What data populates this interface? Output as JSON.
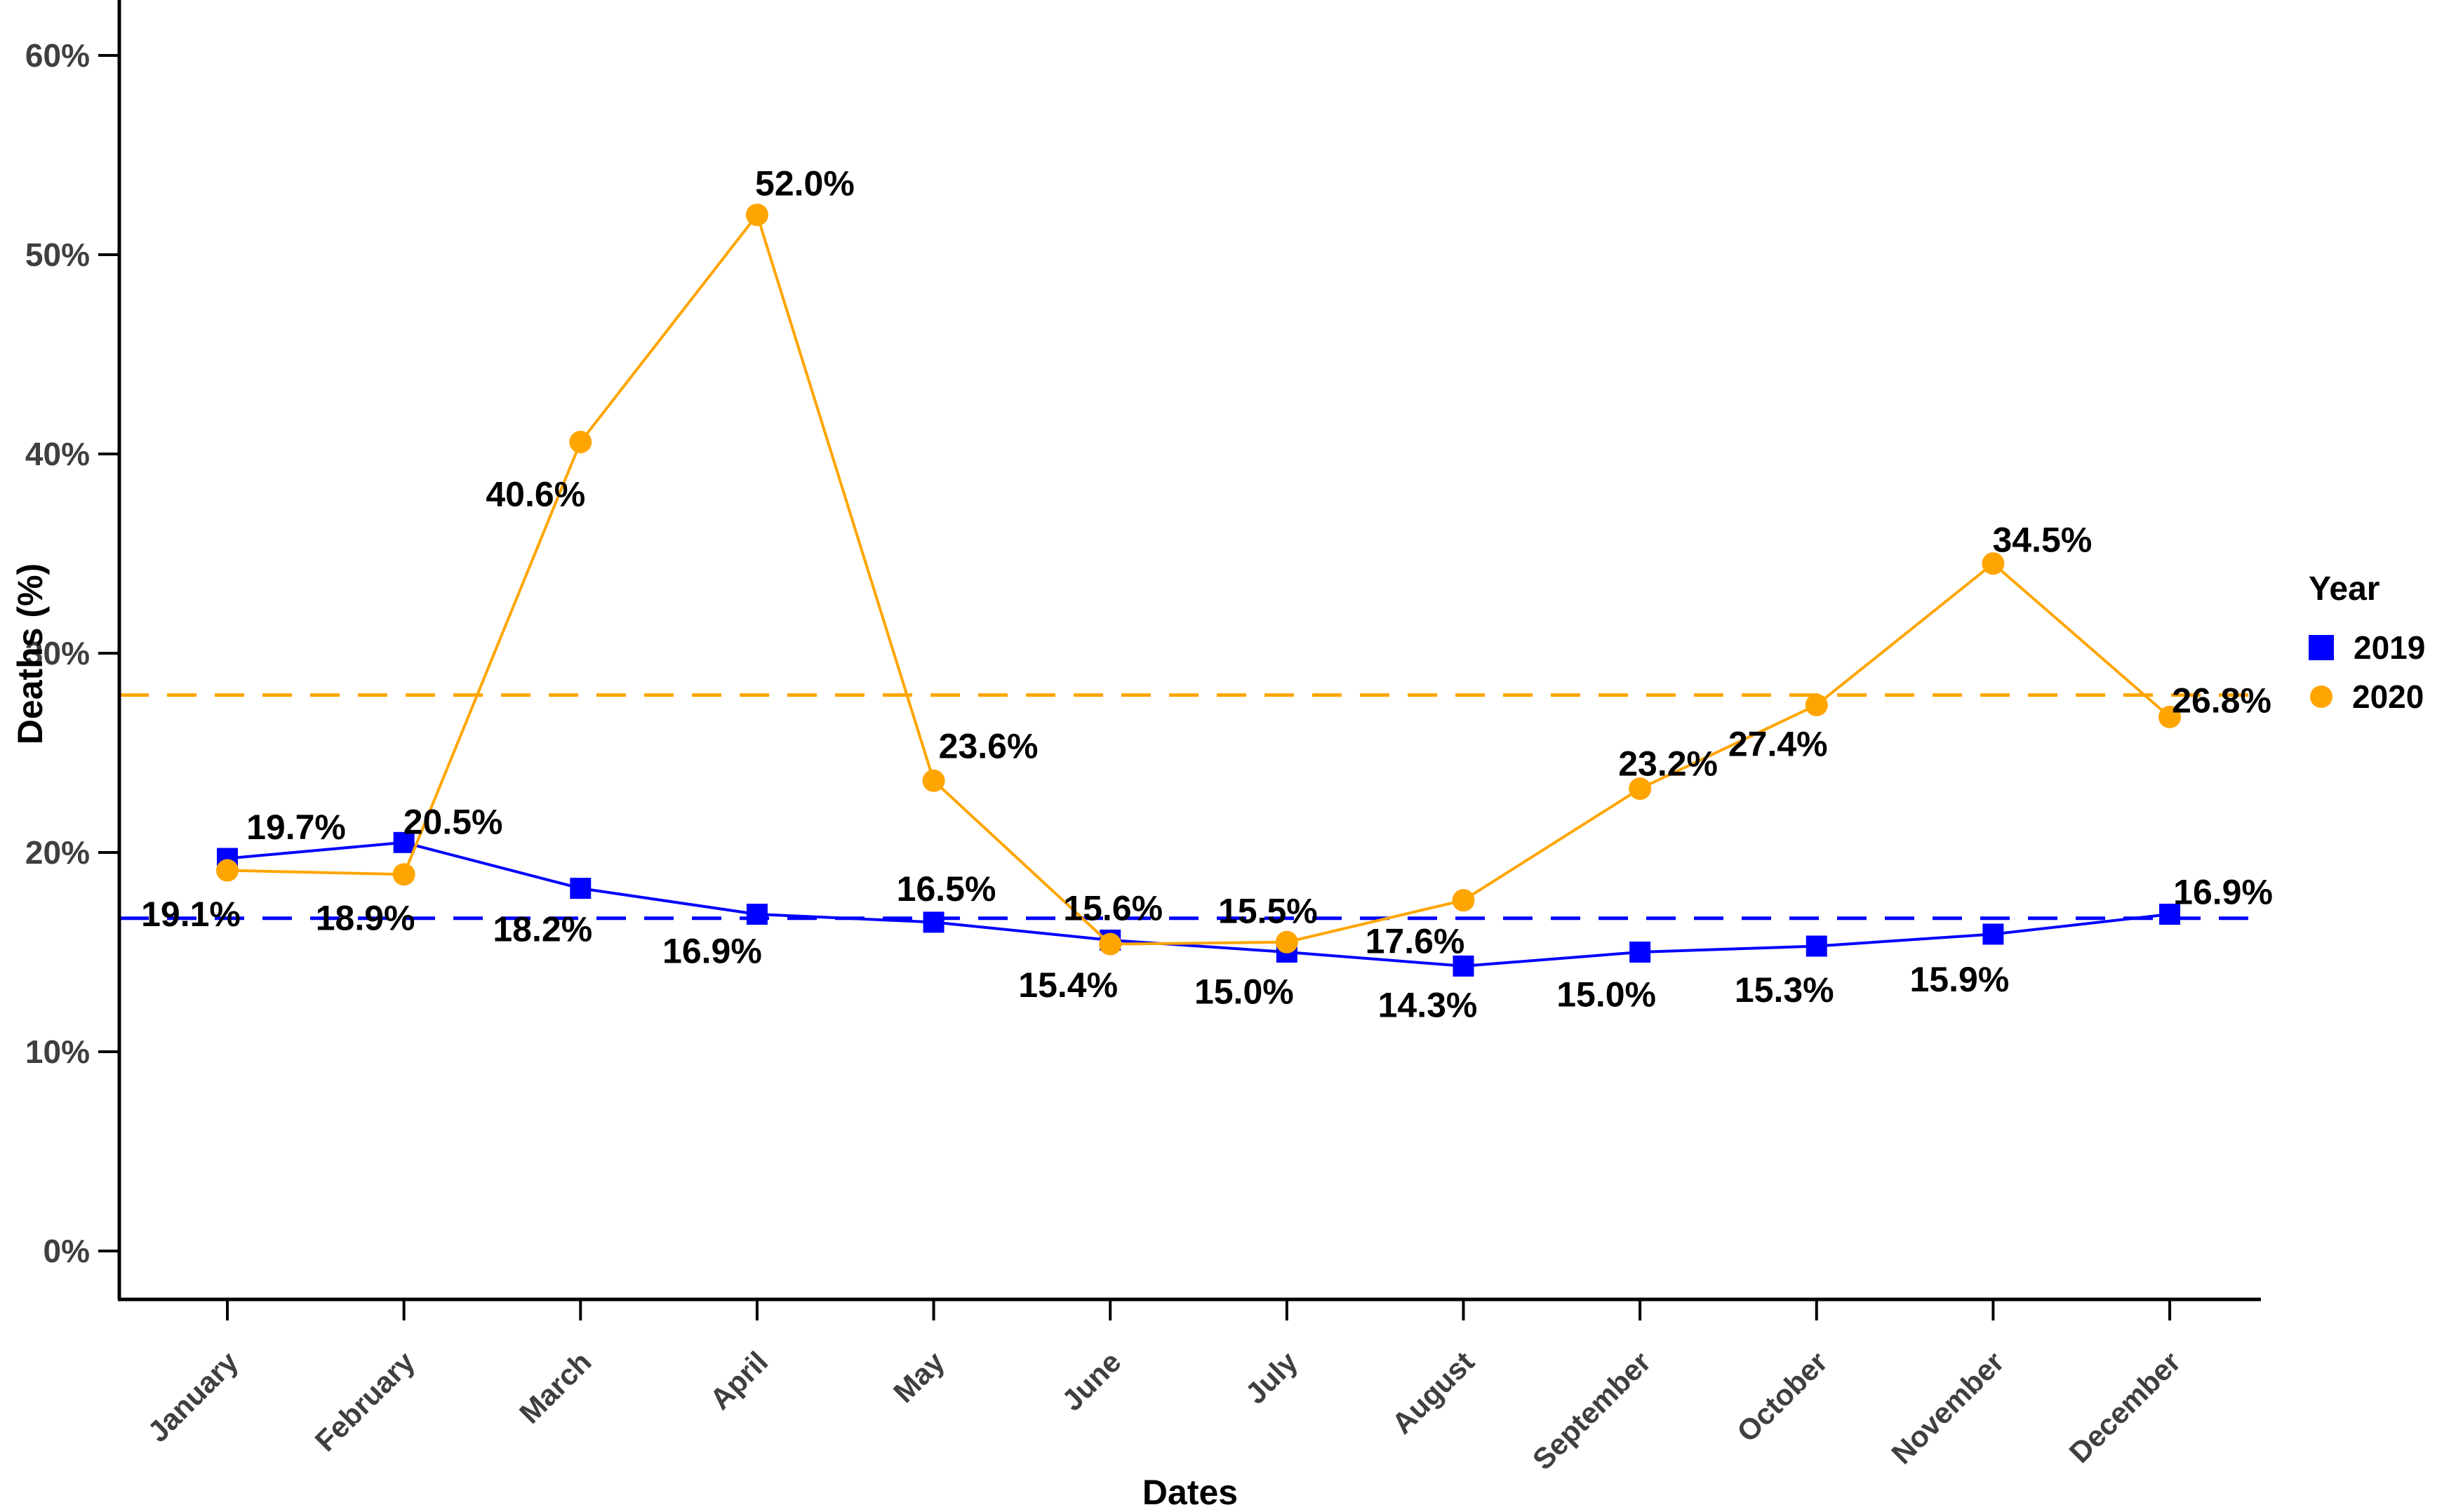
{
  "axes": {
    "y_title": "Deaths (%)",
    "x_title": "Dates",
    "y_ticks": [
      "0%",
      "10%",
      "20%",
      "30%",
      "40%",
      "50%",
      "60%"
    ],
    "y_tick_values": [
      0,
      10,
      20,
      30,
      40,
      50,
      60
    ]
  },
  "legend": {
    "title": "Year",
    "items": [
      {
        "label": "2019",
        "color": "#0000ff",
        "marker": "square"
      },
      {
        "label": "2020",
        "color": "#ffa500",
        "marker": "circle"
      }
    ]
  },
  "chart_data": {
    "type": "line",
    "title": "",
    "xlabel": "Dates",
    "ylabel": "Deaths (%)",
    "categories": [
      "January",
      "February",
      "March",
      "April",
      "May",
      "June",
      "July",
      "August",
      "September",
      "October",
      "November",
      "December"
    ],
    "ylim": [
      0,
      63
    ],
    "grid": false,
    "legend_position": "right",
    "series": [
      {
        "name": "2019",
        "color": "#0000ff",
        "marker": "square",
        "values": [
          19.7,
          20.5,
          18.2,
          16.9,
          16.5,
          15.6,
          15.0,
          14.3,
          15.0,
          15.3,
          15.9,
          16.9
        ],
        "labels": [
          "19.7%",
          "20.5%",
          "18.2%",
          "16.9%",
          "16.5%",
          "15.6%",
          "15.0%",
          "14.3%",
          "15.0%",
          "15.3%",
          "15.9%",
          "16.9%"
        ],
        "label_offsets": [
          [
            98,
            -45
          ],
          [
            70,
            -30
          ],
          [
            -54,
            58
          ],
          [
            -64,
            52
          ],
          [
            18,
            -48
          ],
          [
            4,
            -46
          ],
          [
            -61,
            56
          ],
          [
            -51,
            55
          ],
          [
            -48,
            60
          ],
          [
            -46,
            62
          ],
          [
            -48,
            64
          ],
          [
            76,
            -32
          ]
        ]
      },
      {
        "name": "2020",
        "color": "#ffa500",
        "marker": "circle",
        "values": [
          19.1,
          18.9,
          40.6,
          52.0,
          23.6,
          15.4,
          15.5,
          17.6,
          23.2,
          27.4,
          34.5,
          26.8
        ],
        "labels": [
          "19.1%",
          "18.9%",
          "40.6%",
          "52.0%",
          "23.6%",
          "15.4%",
          "15.5%",
          "17.6%",
          "23.2%",
          "27.4%",
          "34.5%",
          "26.8%"
        ],
        "label_offsets": [
          [
            -52,
            62
          ],
          [
            -55,
            62
          ],
          [
            -64,
            74
          ],
          [
            68,
            -45
          ],
          [
            78,
            -50
          ],
          [
            -60,
            58
          ],
          [
            -27,
            -45
          ],
          [
            -69,
            58
          ],
          [
            40,
            -36
          ],
          [
            -55,
            55
          ],
          [
            70,
            -34
          ],
          [
            74,
            -24
          ]
        ]
      }
    ],
    "reference_lines": [
      {
        "series": "2019",
        "value": 16.7,
        "color": "#0000ff",
        "style": "dashed"
      },
      {
        "series": "2020",
        "value": 27.9,
        "color": "#ffa500",
        "style": "dashed"
      }
    ]
  }
}
